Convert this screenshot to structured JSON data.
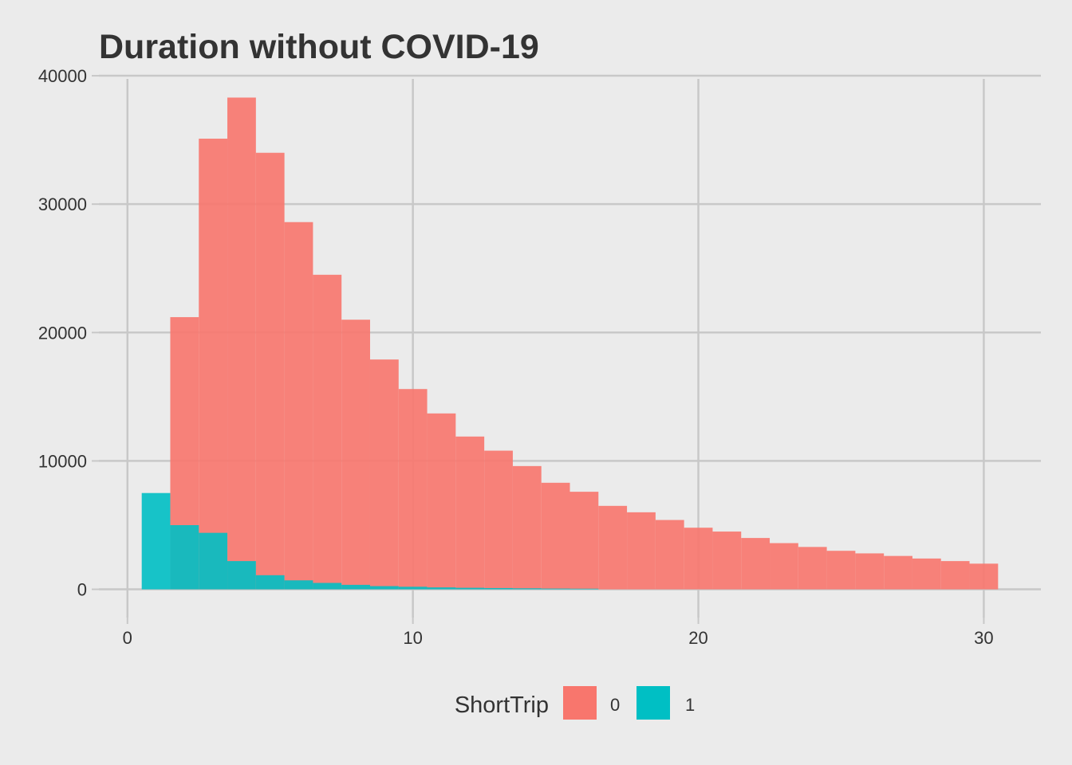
{
  "chart_data": {
    "type": "bar",
    "title": "Duration without COVID-19",
    "xlabel": "",
    "ylabel": "",
    "xlim": [
      -1,
      32
    ],
    "ylim": [
      -2200,
      40500
    ],
    "x_ticks": [
      0,
      10,
      20,
      30
    ],
    "x_tick_labels": [
      "0",
      "10",
      "20",
      "30"
    ],
    "y_ticks": [
      0,
      10000,
      20000,
      30000,
      40000
    ],
    "y_tick_labels": [
      "0",
      "10000",
      "20000",
      "30000",
      "40000"
    ],
    "grid": true,
    "bin_width": 1,
    "bin_centers": [
      1,
      2,
      3,
      4,
      5,
      6,
      7,
      8,
      9,
      10,
      11,
      12,
      13,
      14,
      15,
      16,
      17,
      18,
      19,
      20,
      21,
      22,
      23,
      24,
      25,
      26,
      27,
      28,
      29,
      30
    ],
    "legend": {
      "title": "ShortTrip",
      "position": "bottom"
    },
    "series": [
      {
        "name": "0",
        "color": "#f8766d",
        "values": [
          0,
          21200,
          35100,
          38300,
          34000,
          28600,
          24500,
          21000,
          17900,
          15600,
          13700,
          11900,
          10800,
          9600,
          8300,
          7600,
          6500,
          6000,
          5400,
          4800,
          4500,
          4000,
          3600,
          3300,
          3000,
          2800,
          2600,
          2400,
          2200,
          2000
        ]
      },
      {
        "name": "1",
        "color": "#00bfc4",
        "values": [
          7500,
          5000,
          4400,
          2200,
          1100,
          700,
          500,
          350,
          250,
          200,
          150,
          120,
          100,
          80,
          60,
          50,
          0,
          0,
          0,
          0,
          0,
          0,
          0,
          0,
          0,
          0,
          0,
          0,
          0,
          0
        ]
      }
    ]
  }
}
